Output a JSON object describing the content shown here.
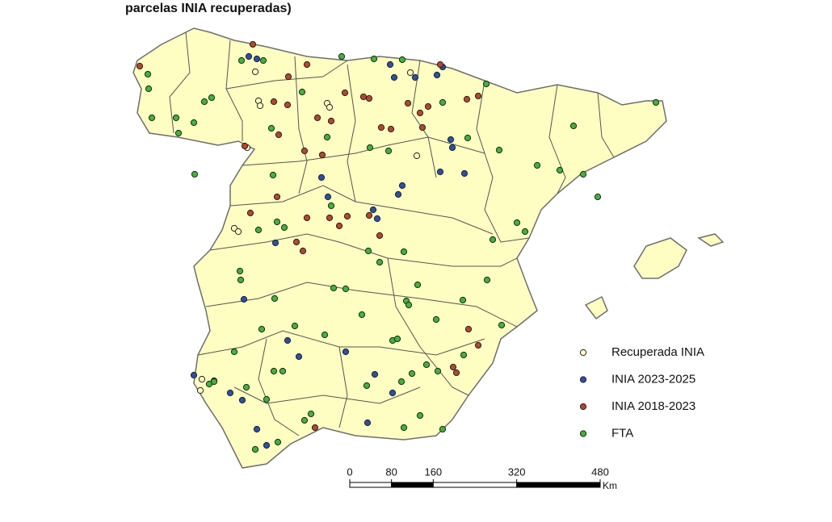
{
  "title": "parcelas INIA recuperadas)",
  "legend": {
    "items": [
      {
        "label": "Recuperada INIA",
        "color": "#ffffc0"
      },
      {
        "label": "INIA 2023-2025",
        "color": "#2d4fa6"
      },
      {
        "label": "INIA 2018-2023",
        "color": "#b4482c"
      },
      {
        "label": "FTA",
        "color": "#3fb536"
      }
    ]
  },
  "scale_bar": {
    "ticks": [
      0,
      80,
      160,
      320,
      480
    ],
    "unit": "Km"
  }
}
